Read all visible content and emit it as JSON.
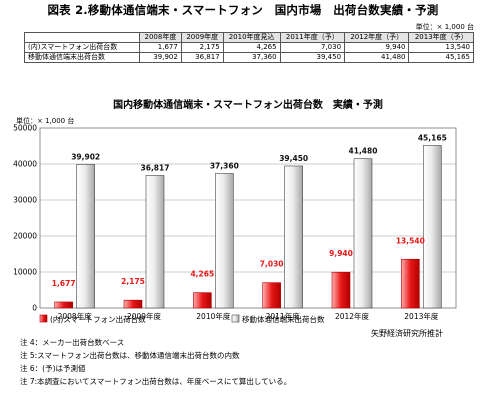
{
  "figure_title": "図表 2.移動体通信端末・スマートフォン　国内市場　出荷台数実績・予測",
  "unit_note": "単位：× 1,000 台",
  "table": {
    "headers": [
      "2008年度",
      "2009年度",
      "2010年度見込",
      "2011年度（予）",
      "2012年度（予）",
      "2013年度（予）"
    ],
    "rows": [
      {
        "label": "(内)スマートフォン出荷台数",
        "values": [
          "1,677",
          "2,175",
          "4,265",
          "7,030",
          "9,940",
          "13,540"
        ]
      },
      {
        "label": "移動体通信端末出荷台数",
        "values": [
          "39,902",
          "36,817",
          "37,360",
          "39,450",
          "41,480",
          "45,165"
        ]
      }
    ]
  },
  "chart_data": {
    "type": "bar",
    "title": "国内移動体通信端末・スマートフォン出荷台数　実績・予測",
    "ylabel": "単位：× 1,000 台",
    "categories": [
      "2008年度",
      "2009年度",
      "2010年度",
      "2011年度",
      "2012年度",
      "2013年度"
    ],
    "ylim": [
      0,
      50000
    ],
    "yticks": [
      0,
      10000,
      20000,
      30000,
      40000,
      50000
    ],
    "series": [
      {
        "name": "(内)スマートフォン出荷台数",
        "values": [
          1677,
          2175,
          4265,
          7030,
          9940,
          13540
        ],
        "labels": [
          "1,677",
          "2,175",
          "4,265",
          "7,030",
          "9,940",
          "13,540"
        ],
        "color": "#e81818",
        "label_color": "#e81818"
      },
      {
        "name": "移動体通信端末出荷台数",
        "values": [
          39902,
          36817,
          37360,
          39450,
          41480,
          45165
        ],
        "labels": [
          "39,902",
          "36,817",
          "37,360",
          "39,450",
          "41,480",
          "45,165"
        ],
        "color": "#e8e8e8",
        "label_color": "#111111"
      }
    ],
    "grid": true,
    "legend": "bottom"
  },
  "source": "矢野経済研究所推計",
  "notes": [
    "注 4：メーカー出荷台数ベース",
    "注 5:スマートフォン出荷台数は、移動体通信端末出荷台数の内数",
    "注 6：(予)は予測値",
    "注 7:本調査においてスマートフォン出荷台数は、年度ベースにて算出している。"
  ]
}
